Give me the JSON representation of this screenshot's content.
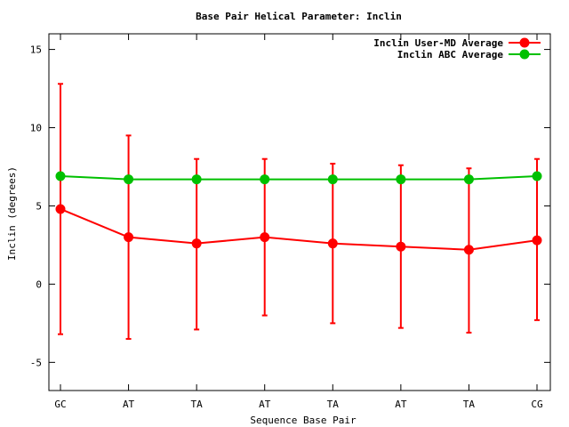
{
  "chart_data": {
    "type": "line",
    "title": "Base Pair Helical Parameter: Inclin",
    "xlabel": "Sequence Base Pair",
    "ylabel": "Inclin (degrees)",
    "categories": [
      "GC",
      "AT",
      "TA",
      "AT",
      "TA",
      "AT",
      "TA",
      "CG"
    ],
    "ylim": [
      -6.8,
      16
    ],
    "yticks": [
      15,
      10,
      5,
      0,
      -5
    ],
    "ytick_labels": [
      "15",
      "10",
      "5",
      "0",
      "-5"
    ],
    "grid": false,
    "legend_position": "top-right",
    "series": [
      {
        "name": "Inclin User-MD Average",
        "color": "#ff0000",
        "values": [
          4.8,
          3.0,
          2.6,
          3.0,
          2.6,
          2.4,
          2.2,
          2.8
        ],
        "error_low": [
          -3.2,
          -3.5,
          -2.9,
          -2.0,
          -2.5,
          -2.8,
          -3.1,
          -2.3
        ],
        "error_high": [
          12.8,
          9.5,
          8.0,
          8.0,
          7.7,
          7.6,
          7.4,
          8.0
        ]
      },
      {
        "name": "Inclin ABC Average",
        "color": "#00c000",
        "values": [
          6.9,
          6.7,
          6.7,
          6.7,
          6.7,
          6.7,
          6.7,
          6.9
        ]
      }
    ]
  }
}
